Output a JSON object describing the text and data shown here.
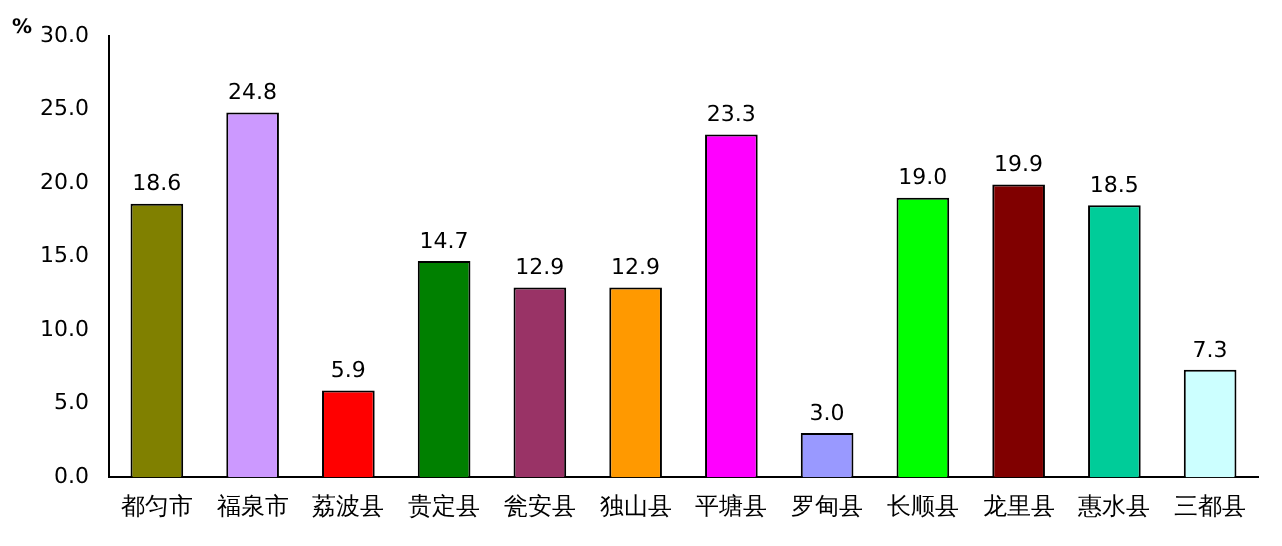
{
  "chart_data": {
    "type": "bar",
    "ylabel": "%",
    "categories": [
      "都匀市",
      "福泉市",
      "荔波县",
      "贵定县",
      "瓮安县",
      "独山县",
      "平塘县",
      "罗甸县",
      "长顺县",
      "龙里县",
      "惠水县",
      "三都县"
    ],
    "values": [
      18.6,
      24.8,
      5.9,
      14.7,
      12.9,
      12.9,
      23.3,
      3.0,
      19.0,
      19.9,
      18.5,
      7.3
    ],
    "value_labels": [
      "18.6",
      "24.8",
      "5.9",
      "14.7",
      "12.9",
      "12.9",
      "23.3",
      "3.0",
      "19.0",
      "19.9",
      "18.5",
      "7.3"
    ],
    "colors": [
      "#808000",
      "#cc99ff",
      "#ff0000",
      "#008000",
      "#993366",
      "#ff9900",
      "#ff00ff",
      "#9999ff",
      "#00ff00",
      "#800000",
      "#00cc99",
      "#ccffff"
    ],
    "ylim": [
      0,
      30
    ],
    "yticks": [
      {
        "value": 0,
        "label": "0.0"
      },
      {
        "value": 5,
        "label": "5.0"
      },
      {
        "value": 10,
        "label": "10.0"
      },
      {
        "value": 15,
        "label": "15.0"
      },
      {
        "value": 20,
        "label": "20.0"
      },
      {
        "value": 25,
        "label": "25.0"
      },
      {
        "value": 30,
        "label": "30.0"
      }
    ],
    "grid": false,
    "legend": false
  }
}
